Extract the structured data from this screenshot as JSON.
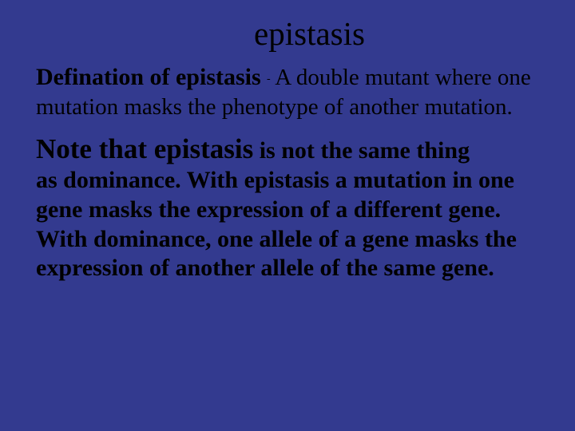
{
  "background_color": "#333a8f",
  "text_color": "#000000",
  "font_family": "Times New Roman, serif",
  "slide": {
    "title": "epistasis",
    "title_fontsize": 41,
    "title_align": "center",
    "definition": {
      "lead": "Defination of epistasis",
      "lead_fontsize": 30,
      "lead_fontweight": "bold",
      "separator": "-",
      "body": " A double mutant where one mutation masks the phenotype of another mutation.",
      "body_fontsize": 29
    },
    "note": {
      "lead": "Note that epistasis",
      "lead_fontsize": 35,
      "lead_fontweight": "bold",
      "rest_first": " is not the same thing",
      "body": "as dominance. With epistasis a mutation in one gene masks the expression of a different gene. With dominance, one allele of a gene masks the expression of another allele of the same gene.",
      "body_fontsize": 30,
      "body_fontweight": "bold"
    }
  }
}
